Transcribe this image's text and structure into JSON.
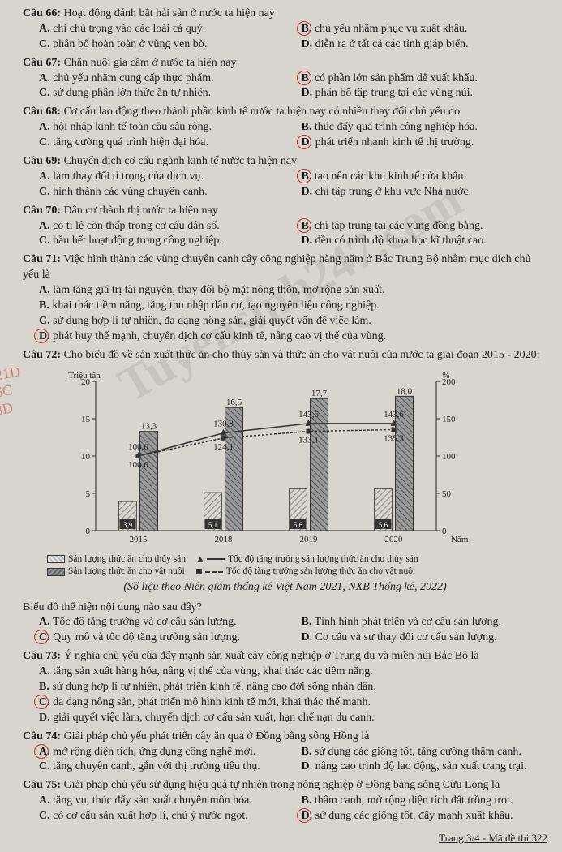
{
  "watermark": "Tuyensinh247.com",
  "margin_notes": [
    "21D",
    "6C",
    "8D"
  ],
  "questions": [
    {
      "n": "66",
      "stem": "Hoạt động đánh bắt hải sản ở nước ta hiện nay",
      "opts": [
        {
          "k": "A",
          "t": "chỉ chú trọng vào các loài cá quý."
        },
        {
          "k": "B",
          "t": "chủ yếu nhằm phục vụ xuất khẩu.",
          "sel": true
        },
        {
          "k": "C",
          "t": "phân bố hoàn toàn ở vùng ven bờ."
        },
        {
          "k": "D",
          "t": "diễn ra ở tất cả các tỉnh giáp biển."
        }
      ],
      "cols": 2
    },
    {
      "n": "67",
      "stem": "Chăn nuôi gia cầm ở nước ta hiện nay",
      "opts": [
        {
          "k": "A",
          "t": "chủ yếu nhằm cung cấp thực phẩm."
        },
        {
          "k": "B",
          "t": "có phần lớn sản phẩm để xuất khẩu.",
          "sel": true
        },
        {
          "k": "C",
          "t": "sử dụng phần lớn thức ăn tự nhiên."
        },
        {
          "k": "D",
          "t": "phân bố tập trung tại các vùng núi."
        }
      ],
      "cols": 2
    },
    {
      "n": "68",
      "stem": "Cơ cấu lao động theo thành phần kinh tế nước ta hiện nay có nhiều thay đổi chủ yếu do",
      "opts": [
        {
          "k": "A",
          "t": "hội nhập kinh tế toàn cầu sâu rộng."
        },
        {
          "k": "B",
          "t": "thúc đẩy quá trình công nghiệp hóa."
        },
        {
          "k": "C",
          "t": "tăng cường quá trình hiện đại hóa."
        },
        {
          "k": "D",
          "t": "phát triển nhanh kinh tế thị trường.",
          "sel": true
        }
      ],
      "cols": 2
    },
    {
      "n": "69",
      "stem": "Chuyển dịch cơ cấu ngành kinh tế nước ta hiện nay",
      "opts": [
        {
          "k": "A",
          "t": "làm thay đổi tỉ trọng của dịch vụ."
        },
        {
          "k": "B",
          "t": "tạo nên các khu kinh tế cửa khẩu.",
          "sel": true
        },
        {
          "k": "C",
          "t": "hình thành các vùng chuyên canh."
        },
        {
          "k": "D",
          "t": "chỉ tập trung ở khu vực Nhà nước."
        }
      ],
      "cols": 2
    },
    {
      "n": "70",
      "stem": "Dân cư thành thị nước ta hiện nay",
      "opts": [
        {
          "k": "A",
          "t": "có tỉ lệ còn thấp trong cơ cấu dân số."
        },
        {
          "k": "B",
          "t": "chỉ tập trung tại các vùng đồng bằng.",
          "sel": true
        },
        {
          "k": "C",
          "t": "hầu hết hoạt động trong công nghiệp."
        },
        {
          "k": "D",
          "t": "đều có trình độ khoa học kĩ thuật cao."
        }
      ],
      "cols": 2
    },
    {
      "n": "71",
      "stem": "Việc hình thành các vùng chuyên canh cây công nghiệp hàng năm ở Bắc Trung Bộ nhằm mục đích chủ yếu là",
      "opts": [
        {
          "k": "A",
          "t": "làm tăng giá trị tài nguyên, thay đổi bộ mặt nông thôn, mở rộng sản xuất."
        },
        {
          "k": "B",
          "t": "khai thác tiềm năng, tăng thu nhập dân cư, tạo nguyên liệu công nghiệp."
        },
        {
          "k": "C",
          "t": "sử dụng hợp lí tự nhiên, đa dạng nông sản, giải quyết vấn đề việc làm."
        },
        {
          "k": "D",
          "t": "phát huy thế mạnh, chuyển dịch cơ cấu kinh tế, nâng cao vị thế của vùng.",
          "sel": true
        }
      ],
      "cols": 1
    },
    {
      "n": "72",
      "stem": "Cho biểu đồ về sản xuất thức ăn cho thủy sản và thức ăn cho vật nuôi của nước ta giai đoạn 2015 - 2020:",
      "opts": [],
      "cols": 1,
      "chart": true
    },
    {
      "n": "72b",
      "stem": "Biểu đồ thể hiện nội dung nào sau đây?",
      "opts": [
        {
          "k": "A",
          "t": "Tốc độ tăng trưởng và cơ cấu sản lượng."
        },
        {
          "k": "B",
          "t": "Tình hình phát triển và cơ cấu sản lượng."
        },
        {
          "k": "C",
          "t": "Quy mô và tốc độ tăng trưởng sản lượng.",
          "sel": true
        },
        {
          "k": "D",
          "t": "Cơ cấu và sự thay đổi cơ cấu sản lượng."
        }
      ],
      "cols": 2,
      "no_num": true
    },
    {
      "n": "73",
      "stem": "Ý nghĩa chủ yếu của đẩy mạnh sản xuất cây công nghiệp ở Trung du và miền núi Bắc Bộ là",
      "opts": [
        {
          "k": "A",
          "t": "tăng sản xuất hàng hóa, nâng vị thế của vùng, khai thác các tiềm năng."
        },
        {
          "k": "B",
          "t": "sử dụng hợp lí tự nhiên, phát triển kinh tế, nâng cao đời sống nhân dân."
        },
        {
          "k": "C",
          "t": "đa dạng nông sản, phát triển mô hình kinh tế mới, khai thác thế mạnh.",
          "sel": true
        },
        {
          "k": "D",
          "t": "giải quyết việc làm, chuyển dịch cơ cấu sản xuất, hạn chế nạn du canh."
        }
      ],
      "cols": 1
    },
    {
      "n": "74",
      "stem": "Giải pháp chủ yếu phát triển cây ăn quả ở Đồng bằng sông Hồng là",
      "opts": [
        {
          "k": "A",
          "t": "mở rộng diện tích, ứng dụng công nghệ mới.",
          "sel": true
        },
        {
          "k": "B",
          "t": "sử dụng các giống tốt, tăng cường thâm canh."
        },
        {
          "k": "C",
          "t": "tăng chuyên canh, gắn với thị trường tiêu thụ."
        },
        {
          "k": "D",
          "t": "nâng cao trình độ lao động, sản xuất trang trại."
        }
      ],
      "cols": 2
    },
    {
      "n": "75",
      "stem": "Giải pháp chủ yếu sử dụng hiệu quả tự nhiên trong nông nghiệp ở Đồng bằng sông Cửu Long là",
      "opts": [
        {
          "k": "A",
          "t": "tăng vụ, thúc đẩy sản xuất chuyên môn hóa."
        },
        {
          "k": "B",
          "t": "thâm canh, mở rộng diện tích đất trồng trọt."
        },
        {
          "k": "C",
          "t": "có cơ cấu sản xuất hợp lí, chú ý nước ngọt."
        },
        {
          "k": "D",
          "t": "sử dụng các giống tốt, đẩy mạnh xuất khẩu.",
          "sel": true
        }
      ],
      "cols": 2
    }
  ],
  "chart": {
    "type": "bar+line",
    "title_left": "Triệu tấn",
    "title_right": "%",
    "x_label": "Năm",
    "years": [
      "2015",
      "2018",
      "2019",
      "2020"
    ],
    "bar_thuysan": [
      3.9,
      5.1,
      5.6,
      5.6
    ],
    "bar_vatnuoi": [
      13.3,
      16.5,
      17.7,
      18.0
    ],
    "line_thuysan": [
      100.0,
      130.8,
      143.6,
      143.6
    ],
    "line_vatnuoi": [
      100.0,
      124.1,
      133.1,
      135.3
    ],
    "y1_min": 0,
    "y1_max": 20,
    "y1_step": 5,
    "y2_min": 0,
    "y2_max": 200,
    "y2_step": 50,
    "legend": {
      "bar_ts": "Sản lượng thức ăn cho thủy sản",
      "bar_vn": "Sản lượng thức ăn cho vật nuôi",
      "line_ts": "Tốc độ tăng trưởng sản lượng thức ăn cho thủy sản",
      "line_vn": "Tốc độ tăng trưởng sản lượng thức ăn cho vật nuôi"
    },
    "source": "(Số liệu theo Niên giám thống kê Việt Nam 2021, NXB Thống kê, 2022)",
    "colors": {
      "bar_ts": "#bfbfbf",
      "bar_vn": "#7a7a7a",
      "line": "#333333",
      "bg": "#d8d4ce"
    }
  },
  "footer": "Trang 3/4 - Mã đề thi 322"
}
